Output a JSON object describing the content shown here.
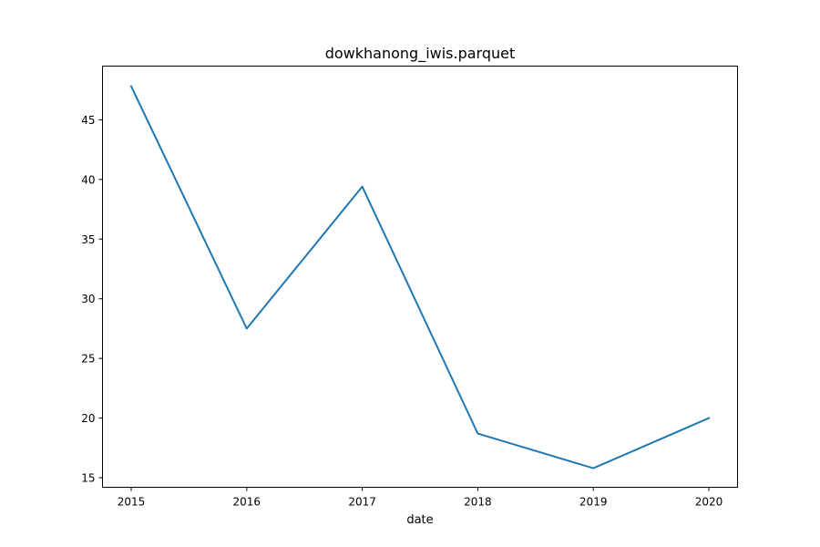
{
  "chart_data": {
    "type": "line",
    "title": "dowkhanong_iwis.parquet",
    "xlabel": "date",
    "ylabel": "",
    "x": [
      "2015",
      "2016",
      "2017",
      "2018",
      "2019",
      "2020"
    ],
    "x_tick_labels": [
      "2015",
      "2016",
      "2017",
      "2018",
      "2019",
      "2020"
    ],
    "y_ticks": [
      15,
      20,
      25,
      30,
      35,
      40,
      45
    ],
    "ylim": [
      14.2,
      49.5
    ],
    "grid": false,
    "series": [
      {
        "color": "#1f77b4",
        "values": [
          47.8,
          27.5,
          39.4,
          18.7,
          15.8,
          20.0
        ]
      }
    ]
  }
}
